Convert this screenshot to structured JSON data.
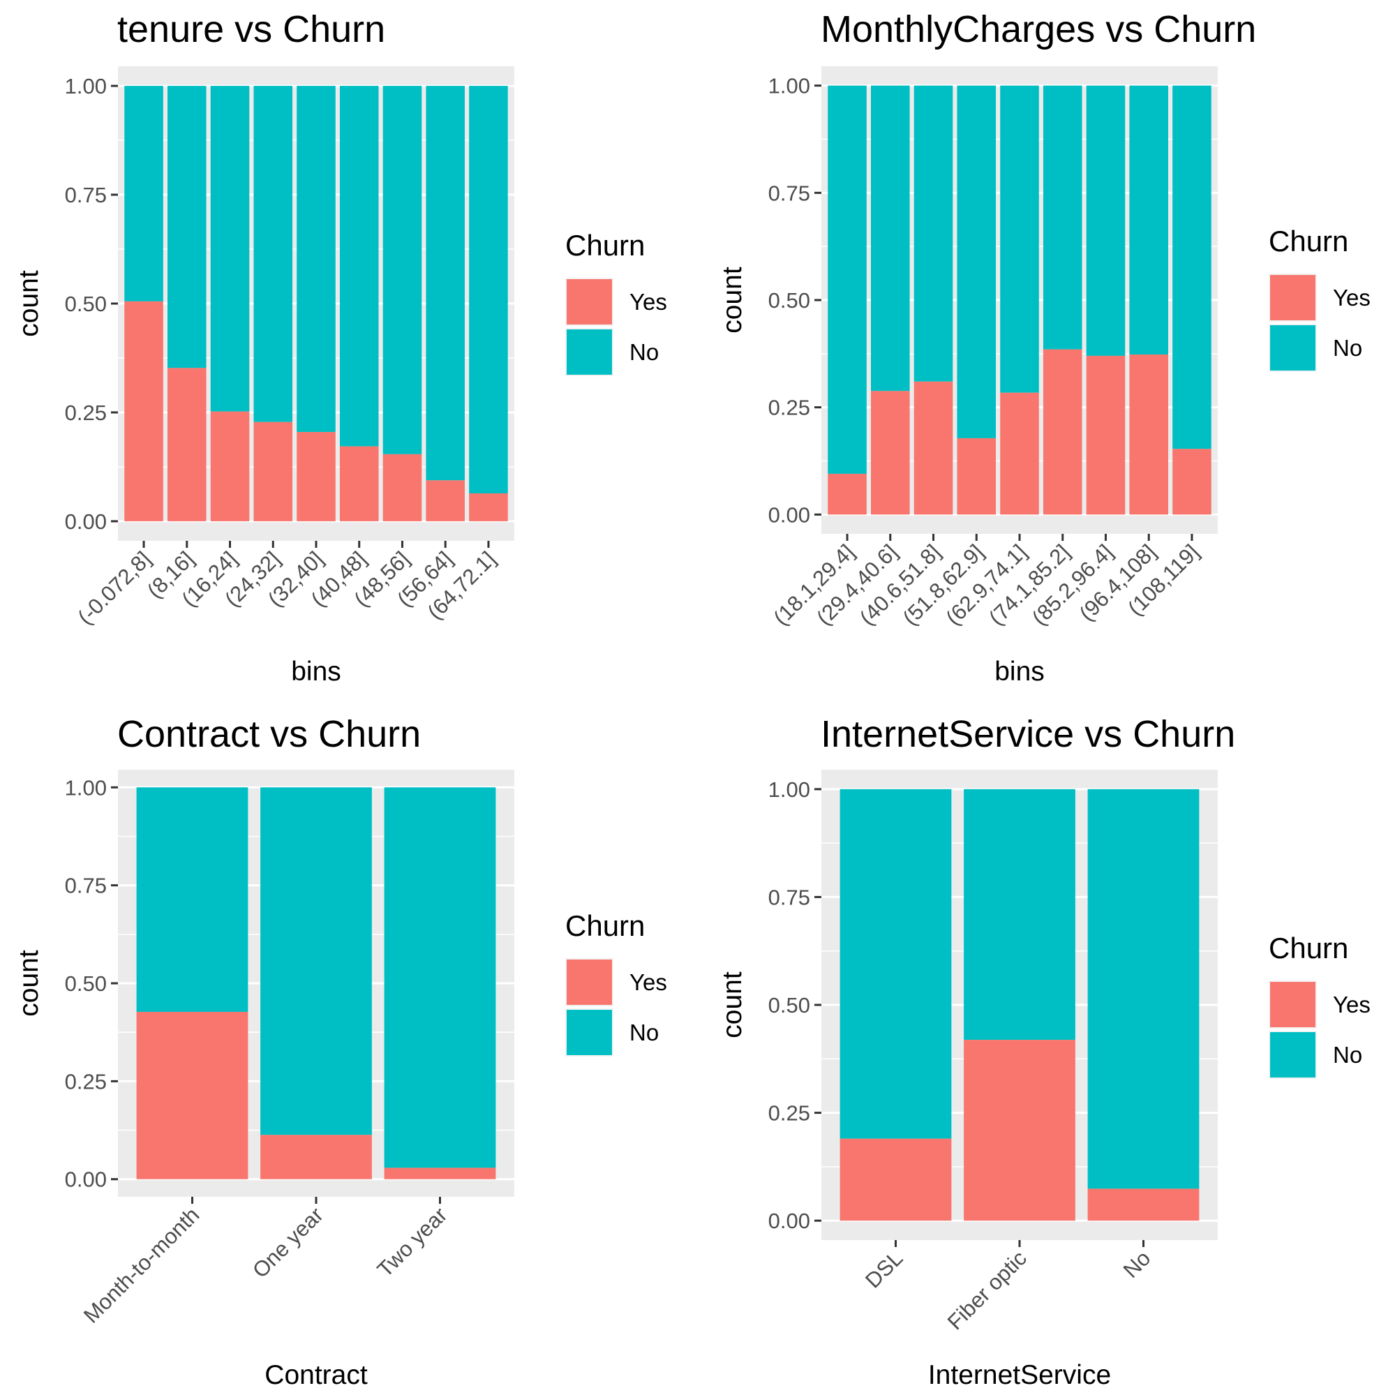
{
  "chart_data": [
    {
      "type": "bar",
      "stacked": true,
      "title": "tenure  vs Churn",
      "xlabel": "bins",
      "ylabel": "count",
      "ylim": [
        0,
        1
      ],
      "yticks": [
        "0.00",
        "0.25",
        "0.50",
        "0.75",
        "1.00"
      ],
      "categories": [
        "(-0.072,8]",
        "(8,16]",
        "(16,24]",
        "(24,32]",
        "(32,40]",
        "(40,48]",
        "(48,56]",
        "(56,64]",
        "(64,72.1]"
      ],
      "series": [
        {
          "name": "Yes",
          "color": "#F8766D",
          "values": [
            0.505,
            0.352,
            0.252,
            0.228,
            0.205,
            0.172,
            0.154,
            0.094,
            0.064
          ]
        },
        {
          "name": "No",
          "color": "#00BFC4",
          "values": [
            0.495,
            0.648,
            0.748,
            0.772,
            0.795,
            0.828,
            0.846,
            0.906,
            0.936
          ]
        }
      ],
      "legend": {
        "title": "Churn",
        "position": "right"
      }
    },
    {
      "type": "bar",
      "stacked": true,
      "title": "MonthlyCharges  vs Churn",
      "xlabel": "bins",
      "ylabel": "count",
      "ylim": [
        0,
        1
      ],
      "yticks": [
        "0.00",
        "0.25",
        "0.50",
        "0.75",
        "1.00"
      ],
      "categories": [
        "(18.1,29.4]",
        "(29.4,40.6]",
        "(40.6,51.8]",
        "(51.8,62.9]",
        "(62.9,74.1]",
        "(74.1,85.2]",
        "(85.2,96.4]",
        "(96.4,108]",
        "(108,119]"
      ],
      "series": [
        {
          "name": "Yes",
          "color": "#F8766D",
          "values": [
            0.095,
            0.288,
            0.31,
            0.178,
            0.284,
            0.385,
            0.37,
            0.373,
            0.153
          ]
        },
        {
          "name": "No",
          "color": "#00BFC4",
          "values": [
            0.905,
            0.712,
            0.69,
            0.822,
            0.716,
            0.615,
            0.63,
            0.627,
            0.847
          ]
        }
      ],
      "legend": {
        "title": "Churn",
        "position": "right"
      }
    },
    {
      "type": "bar",
      "stacked": true,
      "title": "Contract  vs Churn",
      "xlabel": "Contract",
      "ylabel": "count",
      "ylim": [
        0,
        1
      ],
      "yticks": [
        "0.00",
        "0.25",
        "0.50",
        "0.75",
        "1.00"
      ],
      "categories": [
        "Month-to-month",
        "One year",
        "Two year"
      ],
      "series": [
        {
          "name": "Yes",
          "color": "#F8766D",
          "values": [
            0.427,
            0.113,
            0.029
          ]
        },
        {
          "name": "No",
          "color": "#00BFC4",
          "values": [
            0.573,
            0.887,
            0.971
          ]
        }
      ],
      "legend": {
        "title": "Churn",
        "position": "right"
      }
    },
    {
      "type": "bar",
      "stacked": true,
      "title": "InternetService  vs Churn",
      "xlabel": "InternetService",
      "ylabel": "count",
      "ylim": [
        0,
        1
      ],
      "yticks": [
        "0.00",
        "0.25",
        "0.50",
        "0.75",
        "1.00"
      ],
      "categories": [
        "DSL",
        "Fiber optic",
        "No"
      ],
      "series": [
        {
          "name": "Yes",
          "color": "#F8766D",
          "values": [
            0.19,
            0.419,
            0.074
          ]
        },
        {
          "name": "No",
          "color": "#00BFC4",
          "values": [
            0.81,
            0.581,
            0.926
          ]
        }
      ],
      "legend": {
        "title": "Churn",
        "position": "right"
      }
    }
  ]
}
